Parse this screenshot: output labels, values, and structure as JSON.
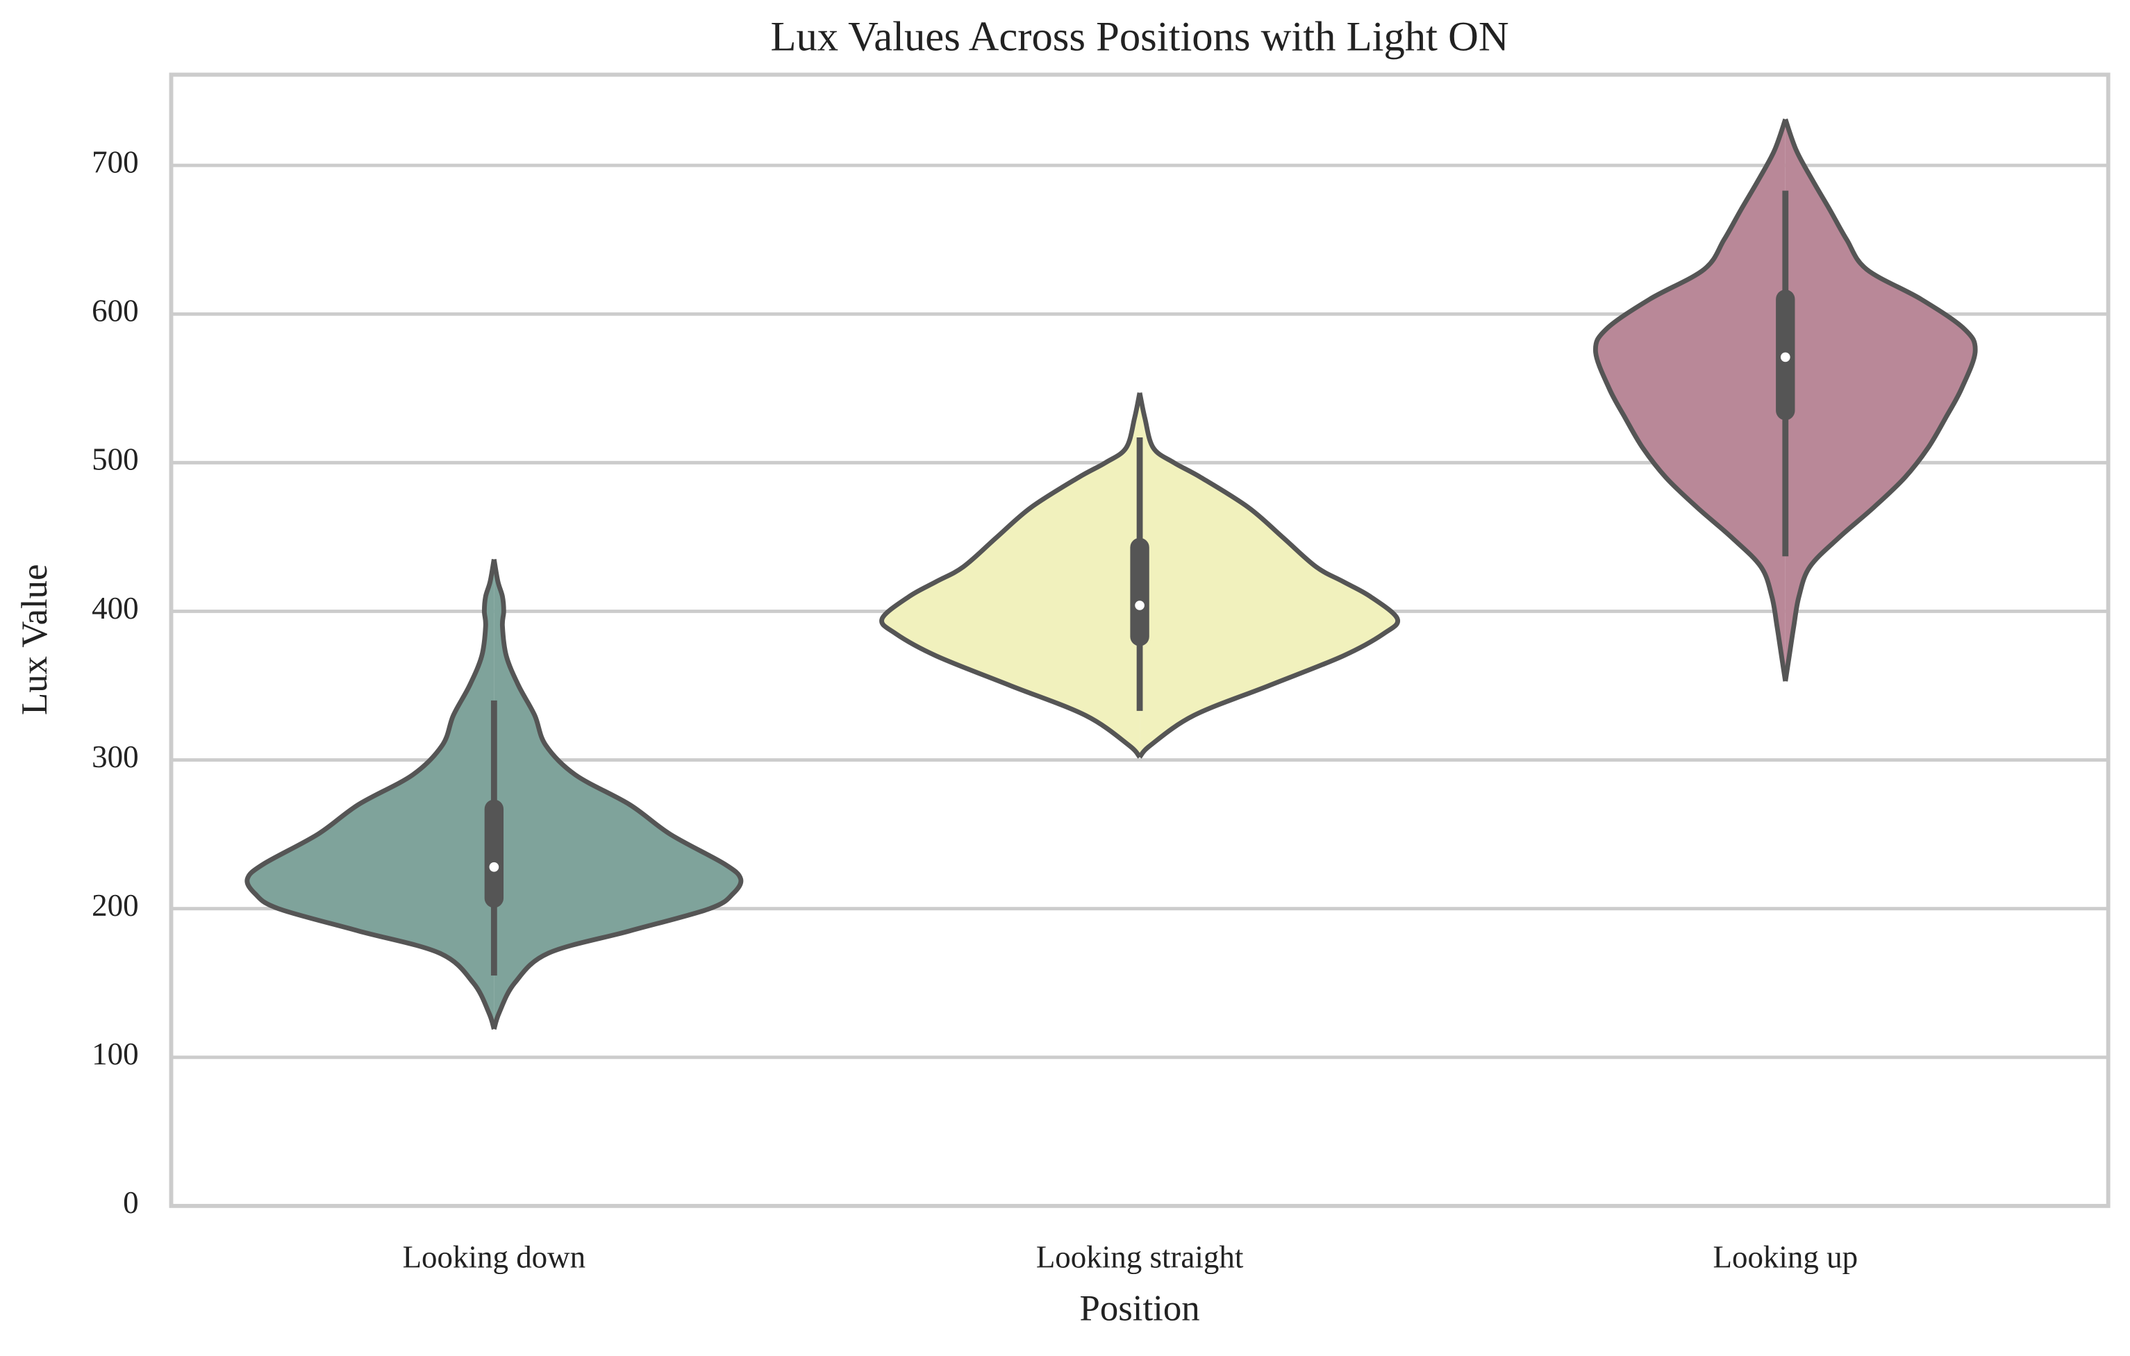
{
  "chart_data": {
    "type": "violin",
    "title": "Lux Values Across Positions with Light ON",
    "x_label": "Position",
    "y_label": "Lux Value",
    "categories": [
      "Looking down",
      "Looking straight",
      "Looking up"
    ],
    "ylim": [
      0,
      761
    ],
    "yticks": [
      0,
      100,
      200,
      300,
      400,
      500,
      600,
      700
    ],
    "grid": true,
    "series": [
      {
        "color": "#7fa39b",
        "values": [
          119,
          130,
          150,
          170,
          185,
          200,
          210,
          220,
          230,
          250,
          270,
          290,
          310,
          330,
          350,
          370,
          390,
          400,
          410,
          420,
          435
        ],
        "density": [
          0,
          0.008,
          0.032,
          0.084,
          0.21,
          0.334,
          0.37,
          0.382,
          0.357,
          0.273,
          0.21,
          0.126,
          0.08,
          0.063,
          0.038,
          0.019,
          0.013,
          0.015,
          0.013,
          0.006,
          0
        ],
        "whisker_low": 155,
        "q1": 207,
        "median": 228,
        "q3": 267,
        "whisker_high": 340
      },
      {
        "color": "#f1f1bd",
        "values": [
          302,
          310,
          330,
          350,
          370,
          385,
          395,
          410,
          420,
          430,
          450,
          470,
          490,
          500,
          510,
          530,
          547
        ],
        "density": [
          0,
          0.017,
          0.084,
          0.2,
          0.315,
          0.378,
          0.399,
          0.357,
          0.315,
          0.273,
          0.221,
          0.168,
          0.095,
          0.053,
          0.021,
          0.008,
          0
        ],
        "whisker_low": 333,
        "q1": 383,
        "median": 404,
        "q3": 443,
        "whisker_high": 517
      },
      {
        "color": "#b98898",
        "values": [
          353,
          370,
          390,
          410,
          430,
          450,
          470,
          490,
          510,
          530,
          550,
          575,
          590,
          610,
          630,
          650,
          670,
          690,
          710,
          731
        ],
        "density": [
          0,
          0.006,
          0.013,
          0.021,
          0.038,
          0.084,
          0.137,
          0.185,
          0.221,
          0.248,
          0.273,
          0.294,
          0.277,
          0.21,
          0.126,
          0.095,
          0.069,
          0.042,
          0.017,
          0
        ],
        "whisker_low": 437,
        "q1": 535,
        "median": 571,
        "q3": 610,
        "whisker_high": 683
      }
    ]
  }
}
